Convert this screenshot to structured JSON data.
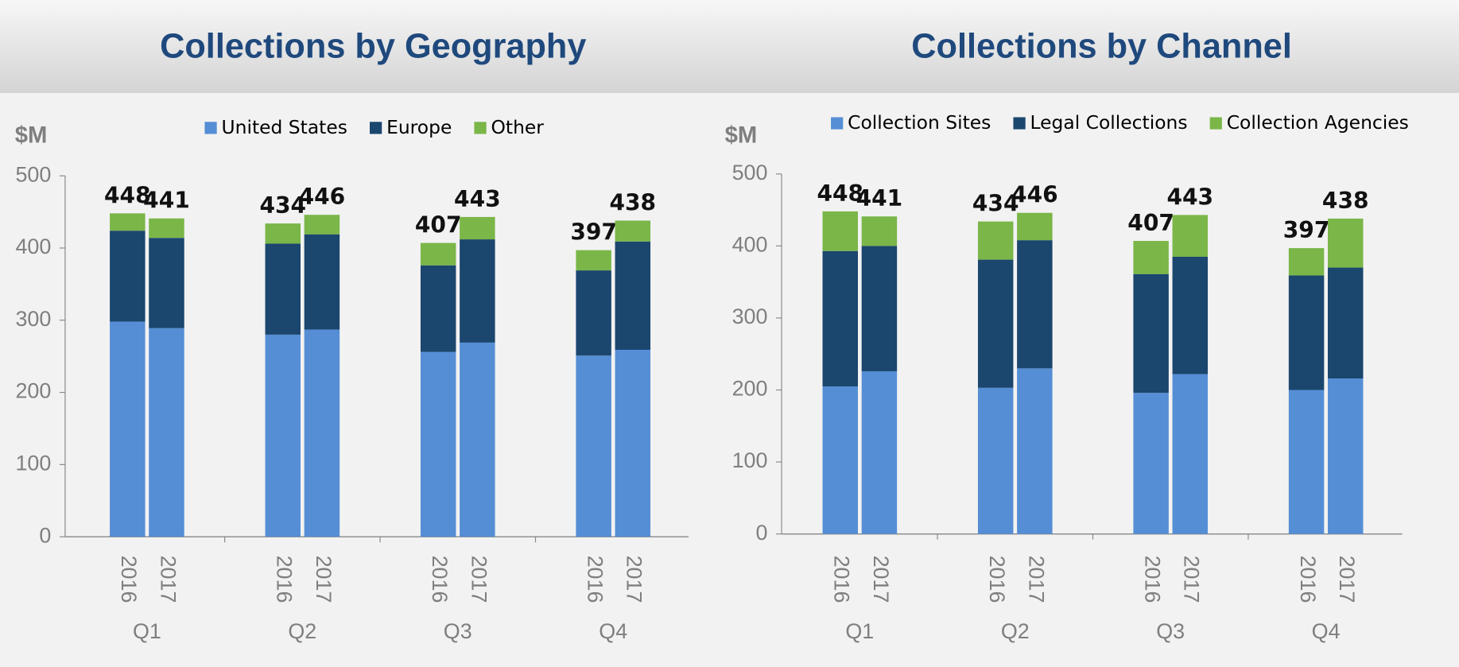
{
  "chart_data": [
    {
      "type": "stacked_bar",
      "title": "Collections by Geography",
      "ylabel": "$M",
      "groups": [
        "Q1",
        "Q2",
        "Q3",
        "Q4"
      ],
      "categories": [
        "2016",
        "2017",
        "2016",
        "2017",
        "2016",
        "2017",
        "2016",
        "2017"
      ],
      "series": [
        {
          "name": "United States",
          "color": "#558ed5",
          "values": [
            298,
            289,
            280,
            287,
            256,
            269,
            251,
            259
          ]
        },
        {
          "name": "Europe",
          "color": "#1b466e",
          "values": [
            126,
            125,
            126,
            132,
            120,
            143,
            118,
            150
          ]
        },
        {
          "name": "Other",
          "color": "#7ab648",
          "values": [
            24,
            27,
            28,
            27,
            31,
            31,
            28,
            29
          ]
        }
      ],
      "totals": [
        448,
        441,
        434,
        446,
        407,
        443,
        397,
        438
      ],
      "ylim": [
        0,
        500
      ],
      "yticks": [
        0,
        100,
        200,
        300,
        400,
        500
      ],
      "legend": "top"
    },
    {
      "type": "stacked_bar",
      "title": "Collections by Channel",
      "ylabel": "$M",
      "groups": [
        "Q1",
        "Q2",
        "Q3",
        "Q4"
      ],
      "categories": [
        "2016",
        "2017",
        "2016",
        "2017",
        "2016",
        "2017",
        "2016",
        "2017"
      ],
      "series": [
        {
          "name": "Collection Sites",
          "color": "#558ed5",
          "values": [
            205,
            226,
            203,
            230,
            196,
            222,
            200,
            216
          ]
        },
        {
          "name": "Legal Collections",
          "color": "#1b466e",
          "values": [
            188,
            174,
            178,
            178,
            165,
            163,
            159,
            154
          ]
        },
        {
          "name": "Collection Agencies",
          "color": "#7ab648",
          "values": [
            55,
            41,
            53,
            38,
            46,
            58,
            38,
            68
          ]
        }
      ],
      "totals": [
        448,
        441,
        434,
        446,
        407,
        443,
        397,
        438
      ],
      "ylim": [
        0,
        500
      ],
      "yticks": [
        0,
        100,
        200,
        300,
        400,
        500
      ],
      "legend": "top"
    }
  ]
}
